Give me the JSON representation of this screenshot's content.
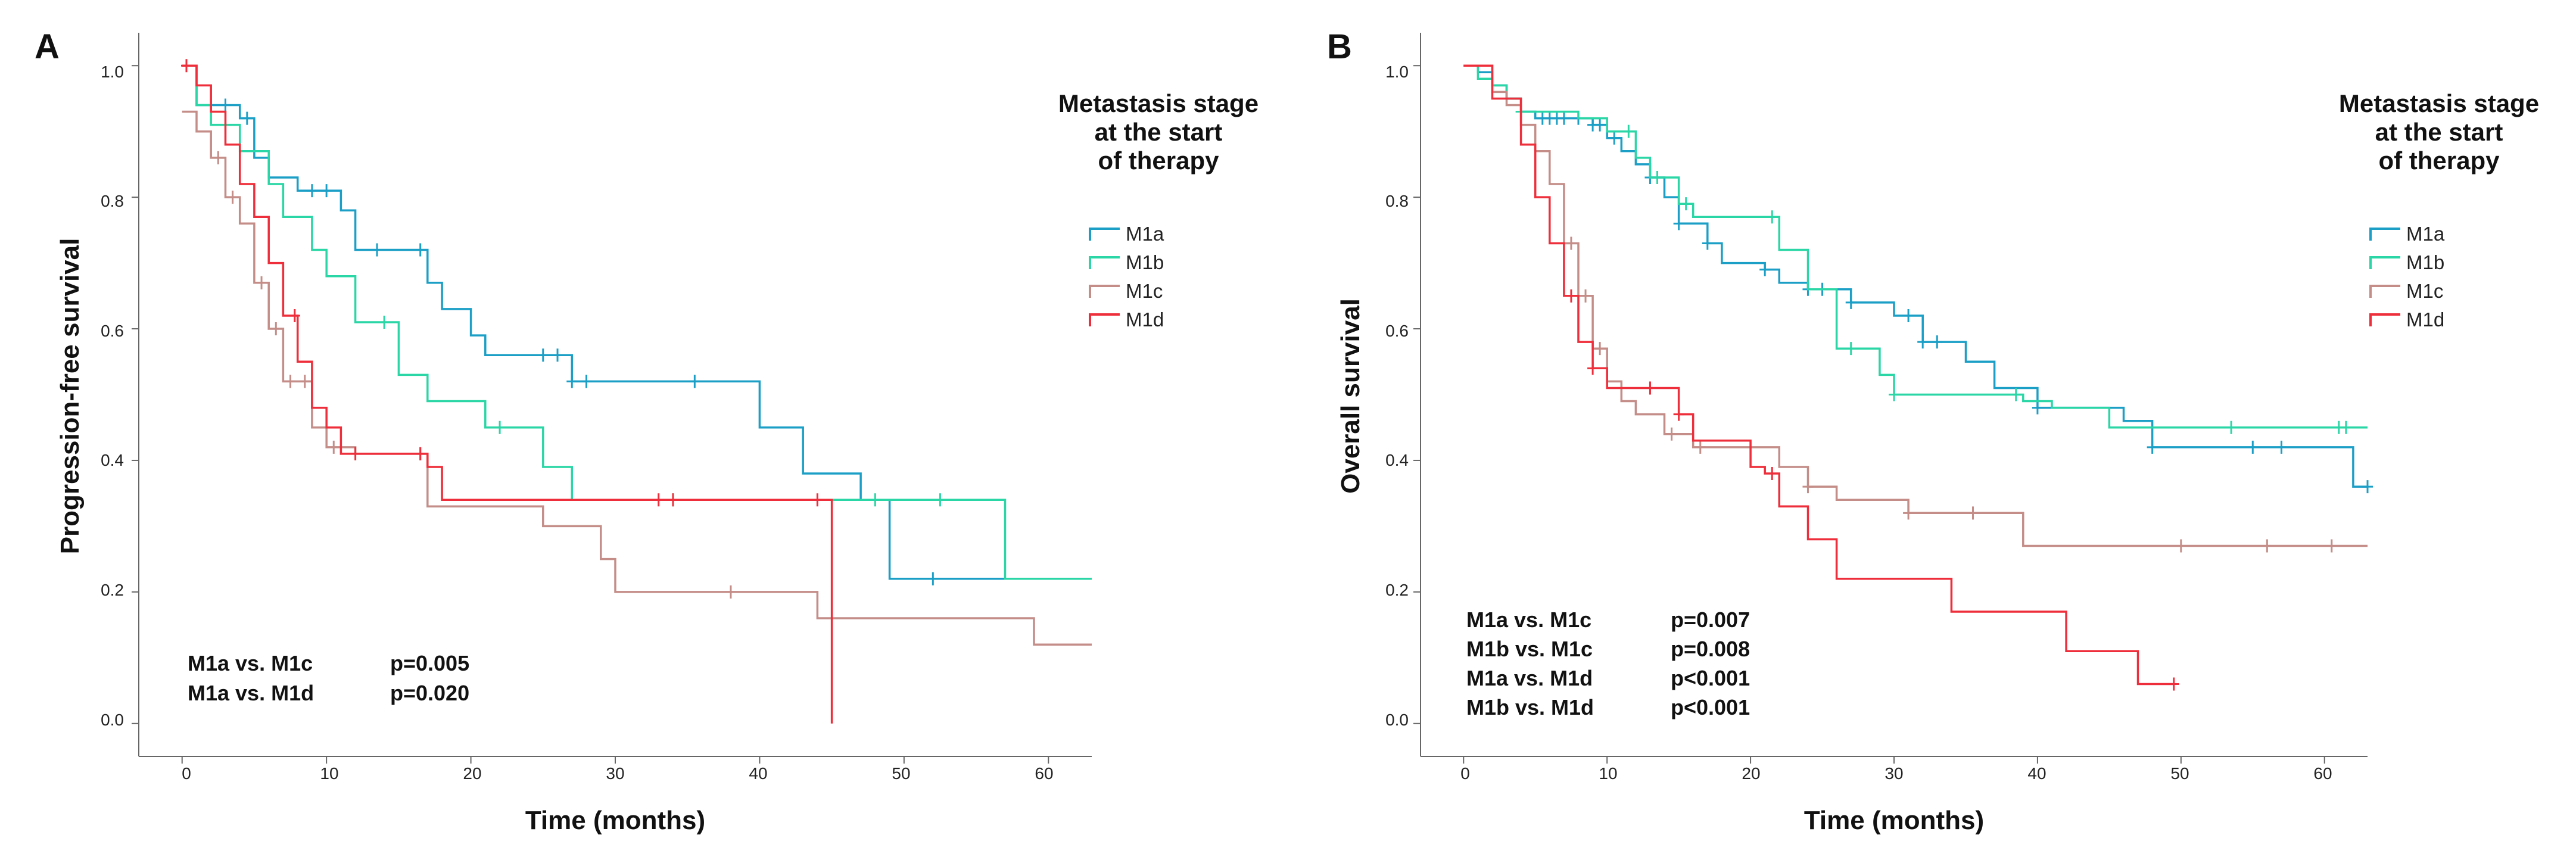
{
  "colors": {
    "M1a": "#1b9fc6",
    "M1b": "#2ad6a5",
    "M1c": "#c48d88",
    "M1d": "#ee2e3a"
  },
  "chart_data": [
    {
      "type": "line",
      "panel": "A",
      "xlabel": "Time (months)",
      "ylabel": "Progression-free survival",
      "xlim": [
        -3,
        63
      ],
      "ylim": [
        -0.05,
        1.05
      ],
      "xticks": [
        0,
        10,
        20,
        30,
        40,
        50,
        60
      ],
      "yticks": [
        0.0,
        0.2,
        0.4,
        0.6,
        0.8,
        1.0
      ],
      "xtick_labels": [
        "0",
        "10",
        "20",
        "30",
        "40",
        "50",
        "60"
      ],
      "ytick_labels": [
        "0.0",
        "0.2",
        "0.4",
        "0.6",
        "0.8",
        "1.0"
      ],
      "legend": {
        "title": [
          "Metastasis stage",
          "at the start",
          "of therapy"
        ],
        "entries": [
          "M1a",
          "M1b",
          "M1c",
          "M1d"
        ],
        "position": "right"
      },
      "annotations": [
        {
          "label": "M1a vs. M1c",
          "p": "p=0.005"
        },
        {
          "label": "M1a vs. M1d",
          "p": "p=0.020"
        }
      ],
      "series": [
        {
          "name": "M1a",
          "x": [
            0,
            1,
            4,
            5,
            6,
            8,
            11,
            12,
            17,
            18,
            20,
            21,
            27,
            40,
            43,
            47,
            49,
            63
          ],
          "y": [
            1.0,
            0.94,
            0.92,
            0.86,
            0.83,
            0.81,
            0.78,
            0.72,
            0.67,
            0.63,
            0.59,
            0.56,
            0.52,
            0.45,
            0.38,
            0.34,
            0.22,
            0.22
          ],
          "censored_x": [
            2,
            3,
            4.5,
            9,
            10,
            13.5,
            16.5,
            25,
            26,
            27,
            28,
            35.5,
            52
          ]
        },
        {
          "name": "M1b",
          "x": [
            0,
            1,
            2,
            4,
            6,
            7,
            9,
            10,
            12,
            15,
            17,
            21,
            25,
            27,
            35,
            46,
            57,
            63
          ],
          "y": [
            1.0,
            0.94,
            0.91,
            0.87,
            0.82,
            0.77,
            0.72,
            0.68,
            0.61,
            0.53,
            0.49,
            0.45,
            0.39,
            0.34,
            0.34,
            0.34,
            0.22,
            0.22
          ],
          "censored_x": [
            3,
            14,
            22,
            34,
            48,
            52.5
          ]
        },
        {
          "name": "M1c",
          "x": [
            0,
            1,
            2,
            3,
            4,
            5,
            6,
            7,
            9,
            10,
            12,
            17,
            25,
            29,
            30,
            44,
            59,
            63
          ],
          "y": [
            0.93,
            0.9,
            0.86,
            0.8,
            0.76,
            0.67,
            0.6,
            0.52,
            0.45,
            0.42,
            0.41,
            0.33,
            0.3,
            0.25,
            0.2,
            0.16,
            0.12,
            0.12
          ],
          "censored_x": [
            2.5,
            3.5,
            5.5,
            6.5,
            7.5,
            8.5,
            10.5,
            16.5,
            38
          ]
        },
        {
          "name": "M1d",
          "x": [
            0,
            1,
            2,
            3,
            4,
            5,
            6,
            7,
            8,
            9,
            10,
            11,
            17,
            18,
            44,
            45,
            45
          ],
          "y": [
            1.0,
            0.97,
            0.93,
            0.88,
            0.82,
            0.77,
            0.7,
            0.62,
            0.55,
            0.48,
            0.45,
            0.41,
            0.39,
            0.34,
            0.34,
            0.34,
            0.0
          ],
          "censored_x": [
            0.3,
            7.8,
            12,
            16.5,
            33,
            34,
            44
          ]
        }
      ]
    },
    {
      "type": "line",
      "panel": "B",
      "xlabel": "Time (months)",
      "ylabel": "Overall survival",
      "xlim": [
        -3,
        63
      ],
      "ylim": [
        -0.05,
        1.05
      ],
      "xticks": [
        0,
        10,
        20,
        30,
        40,
        50,
        60
      ],
      "yticks": [
        0.0,
        0.2,
        0.4,
        0.6,
        0.8,
        1.0
      ],
      "xtick_labels": [
        "0",
        "10",
        "20",
        "30",
        "40",
        "50",
        "60"
      ],
      "ytick_labels": [
        "0.0",
        "0.2",
        "0.4",
        "0.6",
        "0.8",
        "1.0"
      ],
      "legend": {
        "title": [
          "Metastasis stage",
          "at the start",
          "of therapy"
        ],
        "entries": [
          "M1a",
          "M1b",
          "M1c",
          "M1d"
        ],
        "position": "right"
      },
      "annotations": [
        {
          "label": "M1a vs. M1c",
          "p": "p=0.007"
        },
        {
          "label": "M1b vs. M1c",
          "p": "p=0.008"
        },
        {
          "label": "M1a vs. M1d",
          "p": "p<0.001"
        },
        {
          "label": "M1b vs. M1d",
          "p": "p<0.001"
        }
      ],
      "series": [
        {
          "name": "M1a",
          "x": [
            0,
            1,
            2,
            3,
            4,
            5,
            9,
            10,
            11,
            12,
            13,
            14,
            15,
            17,
            18,
            21,
            22,
            24,
            27,
            30,
            32,
            35,
            37,
            40,
            46,
            48,
            62,
            63
          ],
          "y": [
            1.0,
            0.99,
            0.97,
            0.95,
            0.93,
            0.92,
            0.91,
            0.89,
            0.87,
            0.85,
            0.83,
            0.8,
            0.76,
            0.73,
            0.7,
            0.69,
            0.67,
            0.66,
            0.64,
            0.62,
            0.58,
            0.55,
            0.51,
            0.48,
            0.46,
            0.42,
            0.36,
            0.36
          ],
          "censored_x": [
            5.5,
            6,
            6.5,
            7,
            8,
            9,
            9.5,
            10.5,
            13,
            15,
            17,
            21,
            24,
            25,
            27,
            31,
            32,
            33,
            40,
            48,
            55,
            57,
            63
          ]
        },
        {
          "name": "M1b",
          "x": [
            0,
            1,
            2,
            3,
            4,
            8,
            10,
            12,
            13,
            15,
            16,
            22,
            24,
            26,
            29,
            30,
            39,
            41,
            45,
            63
          ],
          "y": [
            1.0,
            0.98,
            0.97,
            0.95,
            0.93,
            0.92,
            0.9,
            0.86,
            0.83,
            0.79,
            0.77,
            0.72,
            0.66,
            0.57,
            0.53,
            0.5,
            0.49,
            0.48,
            0.45,
            0.45
          ],
          "censored_x": [
            4,
            11.5,
            13.5,
            15.5,
            21.5,
            27,
            30,
            38.5,
            53.5,
            61,
            61.5
          ]
        },
        {
          "name": "M1c",
          "x": [
            0,
            2,
            3,
            4,
            5,
            6,
            7,
            8,
            9,
            10,
            11,
            12,
            14,
            16,
            19,
            22,
            24,
            26,
            31,
            35,
            39,
            40,
            63
          ],
          "y": [
            1.0,
            0.96,
            0.94,
            0.91,
            0.87,
            0.82,
            0.73,
            0.65,
            0.57,
            0.52,
            0.49,
            0.47,
            0.44,
            0.42,
            0.42,
            0.39,
            0.36,
            0.34,
            0.32,
            0.32,
            0.27,
            0.27,
            0.27
          ],
          "censored_x": [
            7.5,
            8.5,
            9.5,
            14.5,
            16.5,
            24,
            31,
            35.5,
            50,
            56,
            60.5
          ]
        },
        {
          "name": "M1d",
          "x": [
            0,
            2,
            4,
            5,
            6,
            7,
            8,
            9,
            10,
            12,
            15,
            16,
            20,
            21,
            22,
            24,
            26,
            34,
            42,
            47,
            49.5
          ],
          "y": [
            1.0,
            0.95,
            0.88,
            0.8,
            0.73,
            0.65,
            0.58,
            0.54,
            0.51,
            0.51,
            0.47,
            0.43,
            0.39,
            0.38,
            0.33,
            0.28,
            0.22,
            0.17,
            0.11,
            0.06,
            0.06
          ],
          "censored_x": [
            7.5,
            9,
            13,
            15,
            21.5,
            49.5
          ]
        }
      ]
    }
  ]
}
